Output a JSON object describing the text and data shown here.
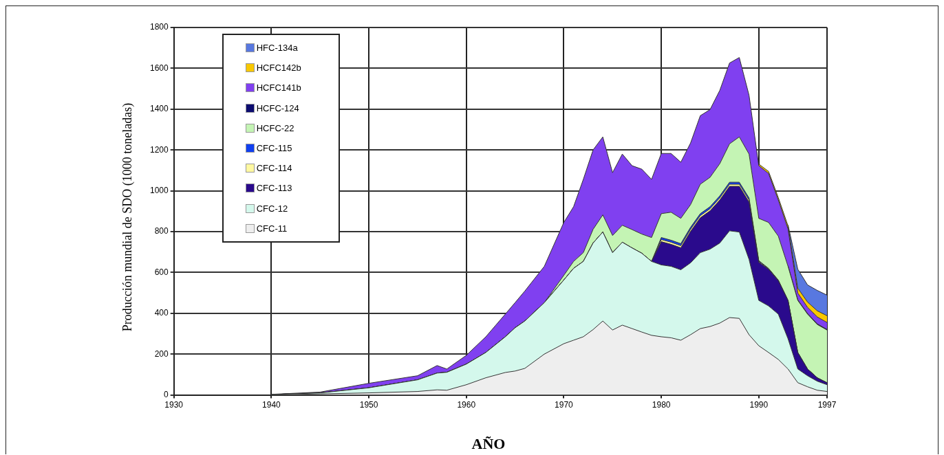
{
  "chart_data": {
    "type": "area",
    "stacked": true,
    "xlabel": "AÑO",
    "ylabel": "Producción mundial de SDO (1000 toneladas)",
    "x": [
      1940,
      1945,
      1950,
      1955,
      1957,
      1958,
      1960,
      1962,
      1964,
      1965,
      1966,
      1968,
      1970,
      1971,
      1972,
      1973,
      1974,
      1975,
      1976,
      1977,
      1978,
      1979,
      1980,
      1981,
      1982,
      1983,
      1984,
      1985,
      1986,
      1987,
      1988,
      1989,
      1990,
      1991,
      1992,
      1993,
      1994,
      1995,
      1996,
      1997
    ],
    "xlim": [
      1930,
      1997
    ],
    "xticks": [
      1930,
      1940,
      1950,
      1960,
      1970,
      1980,
      1990,
      1997
    ],
    "ylim": [
      0,
      1800
    ],
    "yticks": [
      0,
      200,
      400,
      600,
      800,
      1000,
      1200,
      1400,
      1600,
      1800
    ],
    "grid": true,
    "legend": "top left",
    "series": [
      {
        "name": "CFC-11",
        "color": "#eeeeee",
        "values": [
          0,
          5,
          10,
          17,
          25,
          23,
          50,
          84,
          110,
          117,
          130,
          200,
          251,
          268,
          285,
          320,
          362,
          318,
          342,
          325,
          308,
          292,
          285,
          280,
          268,
          295,
          325,
          335,
          352,
          379,
          375,
          295,
          241,
          208,
          174,
          127,
          60,
          40,
          23,
          17
        ]
      },
      {
        "name": "CFC-12",
        "color": "#d4f8ec",
        "values": [
          2,
          5,
          25,
          57,
          82,
          88,
          101,
          124,
          175,
          212,
          232,
          252,
          312,
          352,
          369,
          424,
          436,
          379,
          406,
          395,
          386,
          362,
          352,
          350,
          345,
          352,
          372,
          379,
          392,
          425,
          423,
          369,
          222,
          228,
          222,
          148,
          67,
          54,
          44,
          33
        ]
      },
      {
        "name": "CFC-113",
        "color": "#2a0a8c",
        "values": [
          0,
          0,
          0,
          0,
          0,
          0,
          0,
          0,
          0,
          0,
          0,
          0,
          0,
          0,
          0,
          0,
          0,
          0,
          0,
          0,
          0,
          0,
          114,
          108,
          108,
          154,
          171,
          188,
          211,
          218,
          224,
          281,
          187,
          180,
          164,
          188,
          81,
          33,
          17,
          10
        ]
      },
      {
        "name": "CFC-114",
        "color": "#fff8a0",
        "values": [
          0,
          0,
          0,
          0,
          0,
          0,
          0,
          0,
          0,
          0,
          0,
          0,
          0,
          0,
          0,
          0,
          0,
          0,
          0,
          0,
          0,
          0,
          10,
          10,
          10,
          10,
          10,
          10,
          10,
          10,
          10,
          10,
          4,
          2,
          1,
          0,
          0,
          0,
          0,
          0
        ]
      },
      {
        "name": "CFC-115",
        "color": "#1040f0",
        "values": [
          0,
          0,
          0,
          0,
          0,
          0,
          0,
          0,
          0,
          0,
          0,
          0,
          0,
          0,
          0,
          0,
          0,
          0,
          0,
          0,
          0,
          0,
          10,
          10,
          10,
          10,
          10,
          10,
          10,
          10,
          10,
          10,
          4,
          2,
          2,
          0,
          0,
          0,
          0,
          0
        ]
      },
      {
        "name": "HCFC-22",
        "color": "#c4f4b4",
        "values": [
          0,
          0,
          0,
          0,
          0,
          0,
          0,
          0,
          0,
          0,
          0,
          0,
          23,
          34,
          43,
          67,
          84,
          84,
          83,
          90,
          94,
          117,
          117,
          137,
          124,
          111,
          144,
          144,
          158,
          188,
          222,
          215,
          207,
          225,
          215,
          167,
          255,
          269,
          261,
          258
        ]
      },
      {
        "name": "HCFC-124",
        "color": "#0c0c70",
        "values": [
          null,
          null,
          null,
          null,
          null,
          null,
          null,
          null,
          null,
          null,
          null,
          null,
          null,
          null,
          null,
          null,
          null,
          null,
          null,
          null,
          null,
          null,
          null,
          null,
          null,
          null,
          null,
          null,
          null,
          null,
          null,
          null,
          null,
          null,
          null,
          3,
          3,
          3,
          3,
          3
        ]
      },
      {
        "name": "HCFC141b",
        "color": "#8040f0",
        "values": [
          1,
          4,
          22,
          20,
          37,
          16,
          43,
          77,
          111,
          123,
          147,
          178,
          259,
          268,
          359,
          389,
          382,
          308,
          349,
          313,
          318,
          285,
          295,
          288,
          275,
          302,
          336,
          332,
          359,
          396,
          389,
          288,
          258,
          240,
          177,
          180,
          33,
          30,
          34,
          34
        ]
      },
      {
        "name": "HCFC142b",
        "color": "#f8c800",
        "values": [
          null,
          null,
          null,
          null,
          null,
          null,
          null,
          null,
          null,
          null,
          null,
          null,
          null,
          null,
          null,
          null,
          null,
          null,
          null,
          null,
          null,
          null,
          null,
          null,
          null,
          null,
          null,
          null,
          null,
          null,
          null,
          null,
          8,
          10,
          12,
          15,
          24,
          26,
          30,
          33
        ]
      },
      {
        "name": "HFC-134a",
        "color": "#5878e0",
        "values": [
          null,
          null,
          null,
          null,
          null,
          null,
          null,
          null,
          null,
          null,
          null,
          null,
          null,
          null,
          null,
          null,
          null,
          null,
          null,
          null,
          null,
          null,
          null,
          null,
          null,
          null,
          null,
          null,
          null,
          null,
          null,
          null,
          null,
          null,
          null,
          5,
          93,
          84,
          100,
          101
        ]
      }
    ]
  }
}
